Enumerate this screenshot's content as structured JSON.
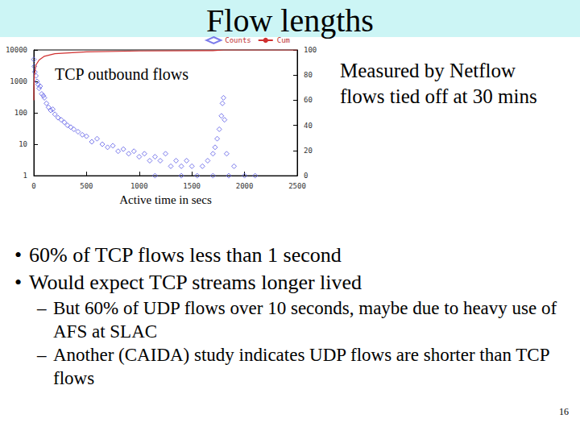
{
  "slide": {
    "title": "Flow lengths",
    "side_note": [
      "Measured by Netflow",
      "flows tied off at 30 mins"
    ],
    "bullets": [
      {
        "text": "60% of TCP flows less than 1 second",
        "sub": []
      },
      {
        "text": "Would expect TCP streams longer lived",
        "sub": [
          "But 60% of UDP flows over 10 seconds, maybe due to heavy use of AFS at SLAC",
          "Another (CAIDA) study indicates UDP flows are shorter than TCP flows"
        ]
      }
    ],
    "page_number": "16"
  },
  "chart_data": {
    "type": "scatter",
    "annotation": "TCP outbound flows",
    "xlabel": "Active time in secs",
    "xlim": [
      0,
      2500
    ],
    "xticks": [
      0,
      500,
      1000,
      1500,
      2000,
      2500
    ],
    "ylim": [
      1,
      10000
    ],
    "yticks": [
      1,
      10,
      100,
      1000,
      10000
    ],
    "log": "y",
    "y2lim": [
      0,
      100
    ],
    "y2ticks": [
      0,
      20,
      40,
      60,
      80,
      100
    ],
    "legend": "top-right",
    "grid": false,
    "series": [
      {
        "name": "Counts",
        "type": "scatter",
        "marker": "diamond",
        "color": "#5a5ae6",
        "x": [
          0,
          5,
          10,
          20,
          30,
          40,
          50,
          60,
          75,
          90,
          100,
          120,
          140,
          160,
          180,
          200,
          230,
          260,
          290,
          320,
          350,
          380,
          420,
          460,
          500,
          550,
          600,
          650,
          700,
          750,
          800,
          850,
          900,
          950,
          1000,
          1050,
          1100,
          1150,
          1150,
          1200,
          1250,
          1300,
          1350,
          1400,
          1400,
          1450,
          1500,
          1550,
          1600,
          1650,
          1700,
          1700,
          1720,
          1740,
          1760,
          1780,
          1790,
          1800,
          1810,
          1830,
          1850,
          1900,
          2000,
          2100
        ],
        "values": [
          5000,
          3000,
          2000,
          1500,
          1000,
          800,
          600,
          700,
          400,
          350,
          300,
          200,
          150,
          120,
          130,
          90,
          70,
          60,
          50,
          40,
          35,
          30,
          25,
          20,
          18,
          12,
          15,
          10,
          8,
          9,
          6,
          7,
          5,
          6,
          4,
          5,
          3,
          4,
          1,
          3,
          5,
          2,
          3,
          2,
          1,
          3,
          2,
          1,
          2,
          3,
          5,
          1,
          8,
          15,
          30,
          80,
          200,
          300,
          60,
          5,
          1,
          2,
          1,
          1
        ]
      },
      {
        "name": "Cum",
        "type": "line",
        "axis": "y2",
        "line_style": "solid",
        "color": "#d03030",
        "x": [
          0,
          1,
          5,
          20,
          50,
          100,
          200,
          500,
          1000,
          1700,
          1800,
          2500
        ],
        "values": [
          60,
          70,
          80,
          88,
          92,
          95,
          97,
          98.5,
          99.2,
          99.5,
          100,
          100
        ]
      }
    ]
  }
}
